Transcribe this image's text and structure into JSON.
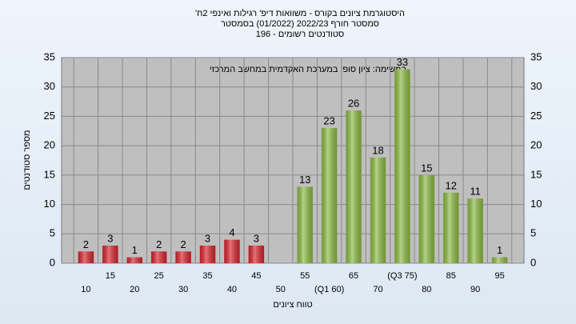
{
  "chart_data": {
    "type": "bar",
    "title": "היסטוגרמת ציונים בקורס - משוואות דיפ' רגילות ואינפי 2ח'",
    "subtitle": "סמסטר חורף 2022/23  (01/2022)  בסמסטר",
    "subtitle2": "סטודנטים רשומים - 196",
    "annotation": "במשימה: ציון סופי במערכת האקדמית במחשב המרכזי",
    "x_label": "טווח ציונים",
    "y_label": "מספר סטודנטים",
    "categories": [
      "10",
      "15",
      "20",
      "25",
      "30",
      "35",
      "40",
      "45",
      "50",
      "55",
      "(Q1 60)",
      "65",
      "70",
      "(Q3 75)",
      "80",
      "85",
      "90",
      "95"
    ],
    "values": [
      2,
      3,
      1,
      2,
      2,
      3,
      4,
      3,
      0,
      13,
      23,
      26,
      18,
      33,
      15,
      12,
      11,
      1
    ],
    "colors": [
      "#d8262e",
      "#d8262e",
      "#d8262e",
      "#d8262e",
      "#d8262e",
      "#d8262e",
      "#d8262e",
      "#d8262e",
      "#d8262e",
      "#8dbb44",
      "#8dbb44",
      "#8dbb44",
      "#8dbb44",
      "#8dbb44",
      "#8dbb44",
      "#8dbb44",
      "#8dbb44",
      "#8dbb44"
    ],
    "ylim": [
      0,
      35
    ],
    "yticks": [
      0,
      5,
      10,
      15,
      20,
      25,
      30,
      35
    ],
    "grid": true
  }
}
